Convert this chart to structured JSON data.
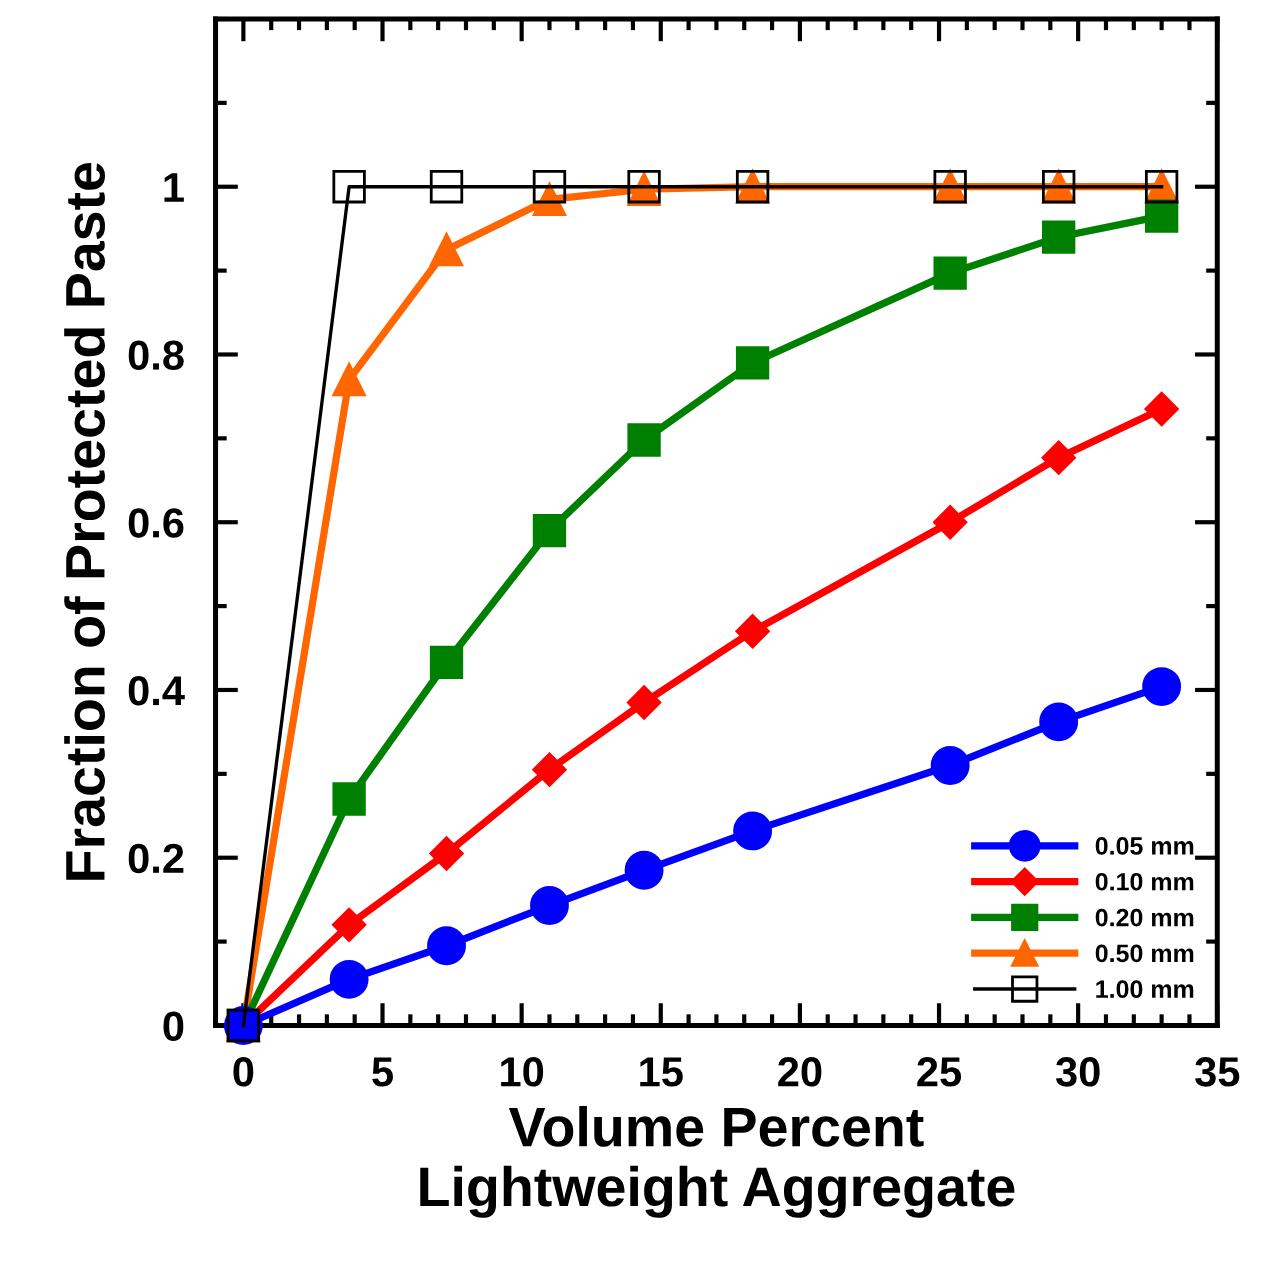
{
  "chart_data": {
    "type": "line",
    "xlabel": "Volume Percent\nLightweight Aggregate",
    "ylabel": "Fraction of Protected Paste",
    "x": [
      0,
      3.8,
      7.3,
      11.0,
      14.4,
      18.3,
      25.4,
      29.3,
      33.0
    ],
    "series": [
      {
        "name": "0.05 mm",
        "color": "#0000ff",
        "marker": "circle",
        "values": [
          0,
          0.055,
          0.095,
          0.143,
          0.185,
          0.232,
          0.31,
          0.362,
          0.404
        ]
      },
      {
        "name": "0.10 mm",
        "color": "#ff0000",
        "marker": "diamond",
        "values": [
          0,
          0.12,
          0.205,
          0.305,
          0.385,
          0.47,
          0.6,
          0.677,
          0.735
        ]
      },
      {
        "name": "0.20 mm",
        "color": "#008000",
        "marker": "square",
        "values": [
          0,
          0.27,
          0.433,
          0.59,
          0.698,
          0.79,
          0.897,
          0.94,
          0.965
        ]
      },
      {
        "name": "0.50 mm",
        "color": "#ff6600",
        "marker": "triangle",
        "values": [
          0,
          0.77,
          0.925,
          0.985,
          0.997,
          1.0,
          1.0,
          1.0,
          1.0
        ]
      },
      {
        "name": "1.00 mm",
        "color": "#000000",
        "marker": "square",
        "values": [
          0,
          1,
          1,
          1,
          1,
          1,
          1,
          1,
          1
        ]
      }
    ],
    "xlim": [
      -1,
      35
    ],
    "xticks": [
      0,
      5,
      10,
      15,
      20,
      25,
      30,
      35
    ],
    "ylim": [
      0,
      1.2
    ],
    "yticks": [
      0,
      0.2,
      0.4,
      0.6,
      0.8,
      1
    ],
    "grid": false,
    "legend": "bottom right",
    "line_style": "solid"
  }
}
